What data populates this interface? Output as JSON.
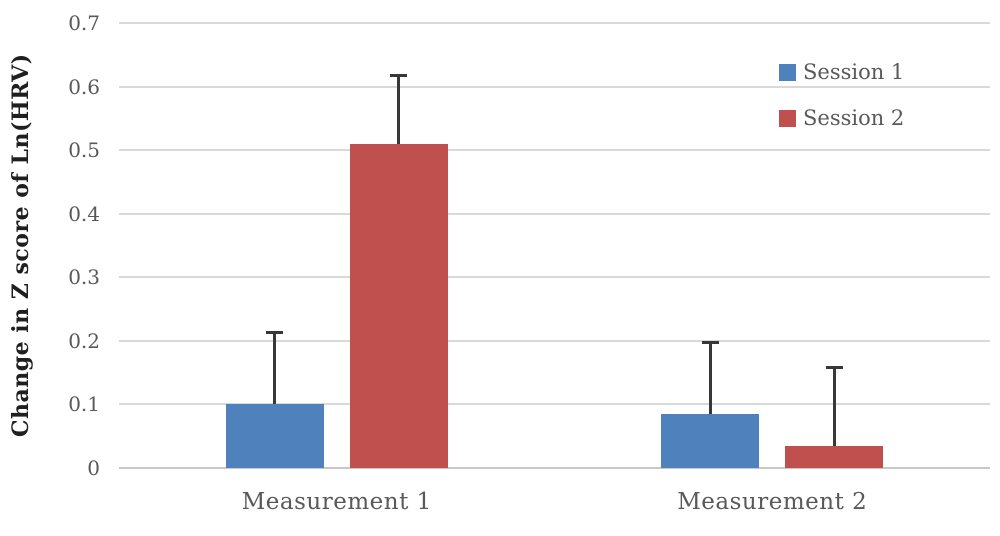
{
  "chart_data": {
    "type": "bar",
    "title": "",
    "xlabel": "",
    "ylabel": "Change in Z score of Ln(HRV)",
    "categories": [
      "Measurement 1",
      "Measurement 2"
    ],
    "series": [
      {
        "name": "Session 1",
        "color": "#4f81bd",
        "values": [
          0.1,
          0.085
        ],
        "error_up": [
          0.115,
          0.115
        ]
      },
      {
        "name": "Session 2",
        "color": "#c0504d",
        "values": [
          0.51,
          0.035
        ],
        "error_up": [
          0.11,
          0.125
        ]
      }
    ],
    "ylim": [
      0,
      0.7
    ],
    "ytick_values": [
      0,
      0.1,
      0.2,
      0.3,
      0.4,
      0.5,
      0.6,
      0.7
    ],
    "ytick_labels": [
      "0",
      "0.1",
      "0.2",
      "0.3",
      "0.4",
      "0.5",
      "0.6",
      "0.7"
    ],
    "grid": true,
    "legend_position": "top-right",
    "error_bars": "upper",
    "colors": {
      "gridline": "#d9d9d9",
      "baseline": "#c8c8c8",
      "error_bar": "#383838",
      "tick_label": "#595959",
      "category_label": "#595959",
      "axis_title": "#1f1f1f"
    }
  }
}
